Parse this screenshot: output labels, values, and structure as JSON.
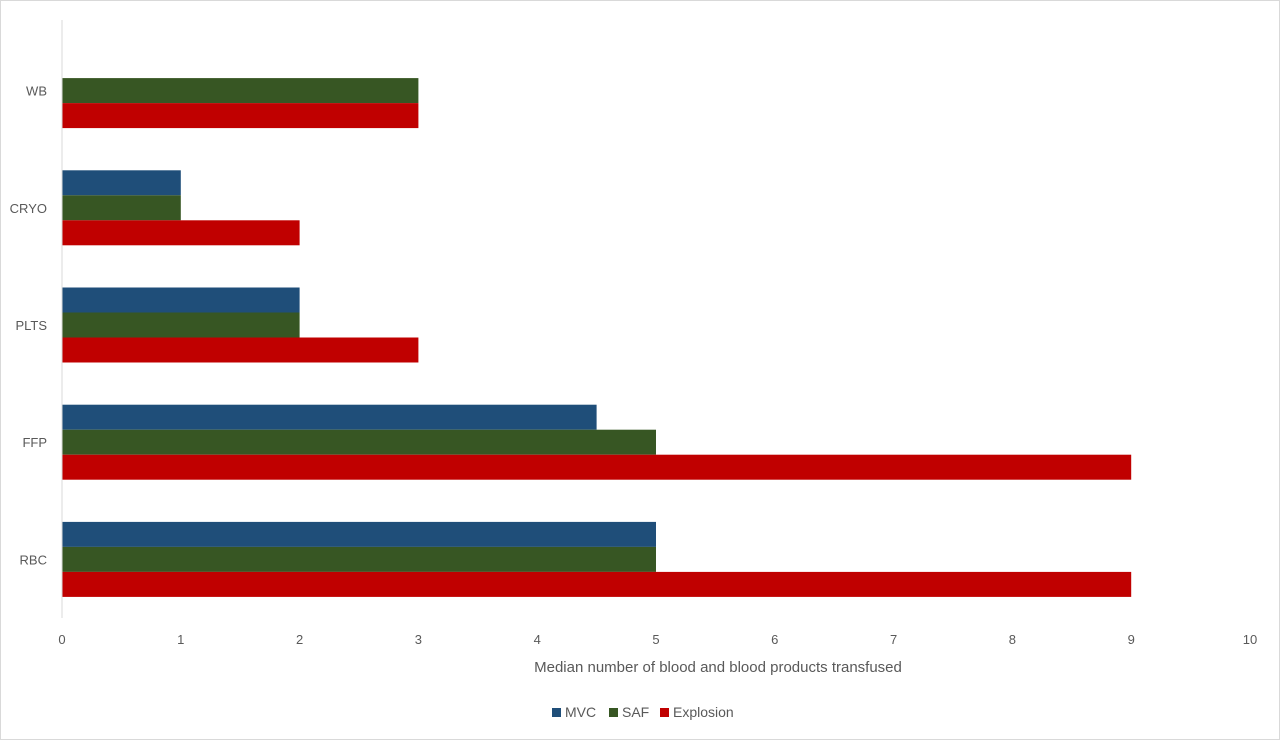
{
  "chart_data": {
    "type": "bar",
    "orientation": "horizontal",
    "categories": [
      "RBC",
      "FFP",
      "PLTS",
      "CRYO",
      "WB"
    ],
    "series": [
      {
        "name": "MVC",
        "color": "#1f4e79",
        "values": [
          5,
          4.5,
          2,
          1,
          0
        ]
      },
      {
        "name": "SAF",
        "color": "#375623",
        "values": [
          5,
          5,
          2,
          1,
          3
        ]
      },
      {
        "name": "Explosion",
        "color": "#c00000",
        "values": [
          9,
          9,
          3,
          2,
          3
        ]
      }
    ],
    "xlabel": "Median number of blood and blood products transfused",
    "ylabel": "",
    "title": "",
    "xlim": [
      0,
      10
    ],
    "x_ticks": [
      "0",
      "1",
      "2",
      "3",
      "4",
      "5",
      "6",
      "7",
      "8",
      "9",
      "10"
    ],
    "grid": false,
    "legend_position": "bottom"
  }
}
